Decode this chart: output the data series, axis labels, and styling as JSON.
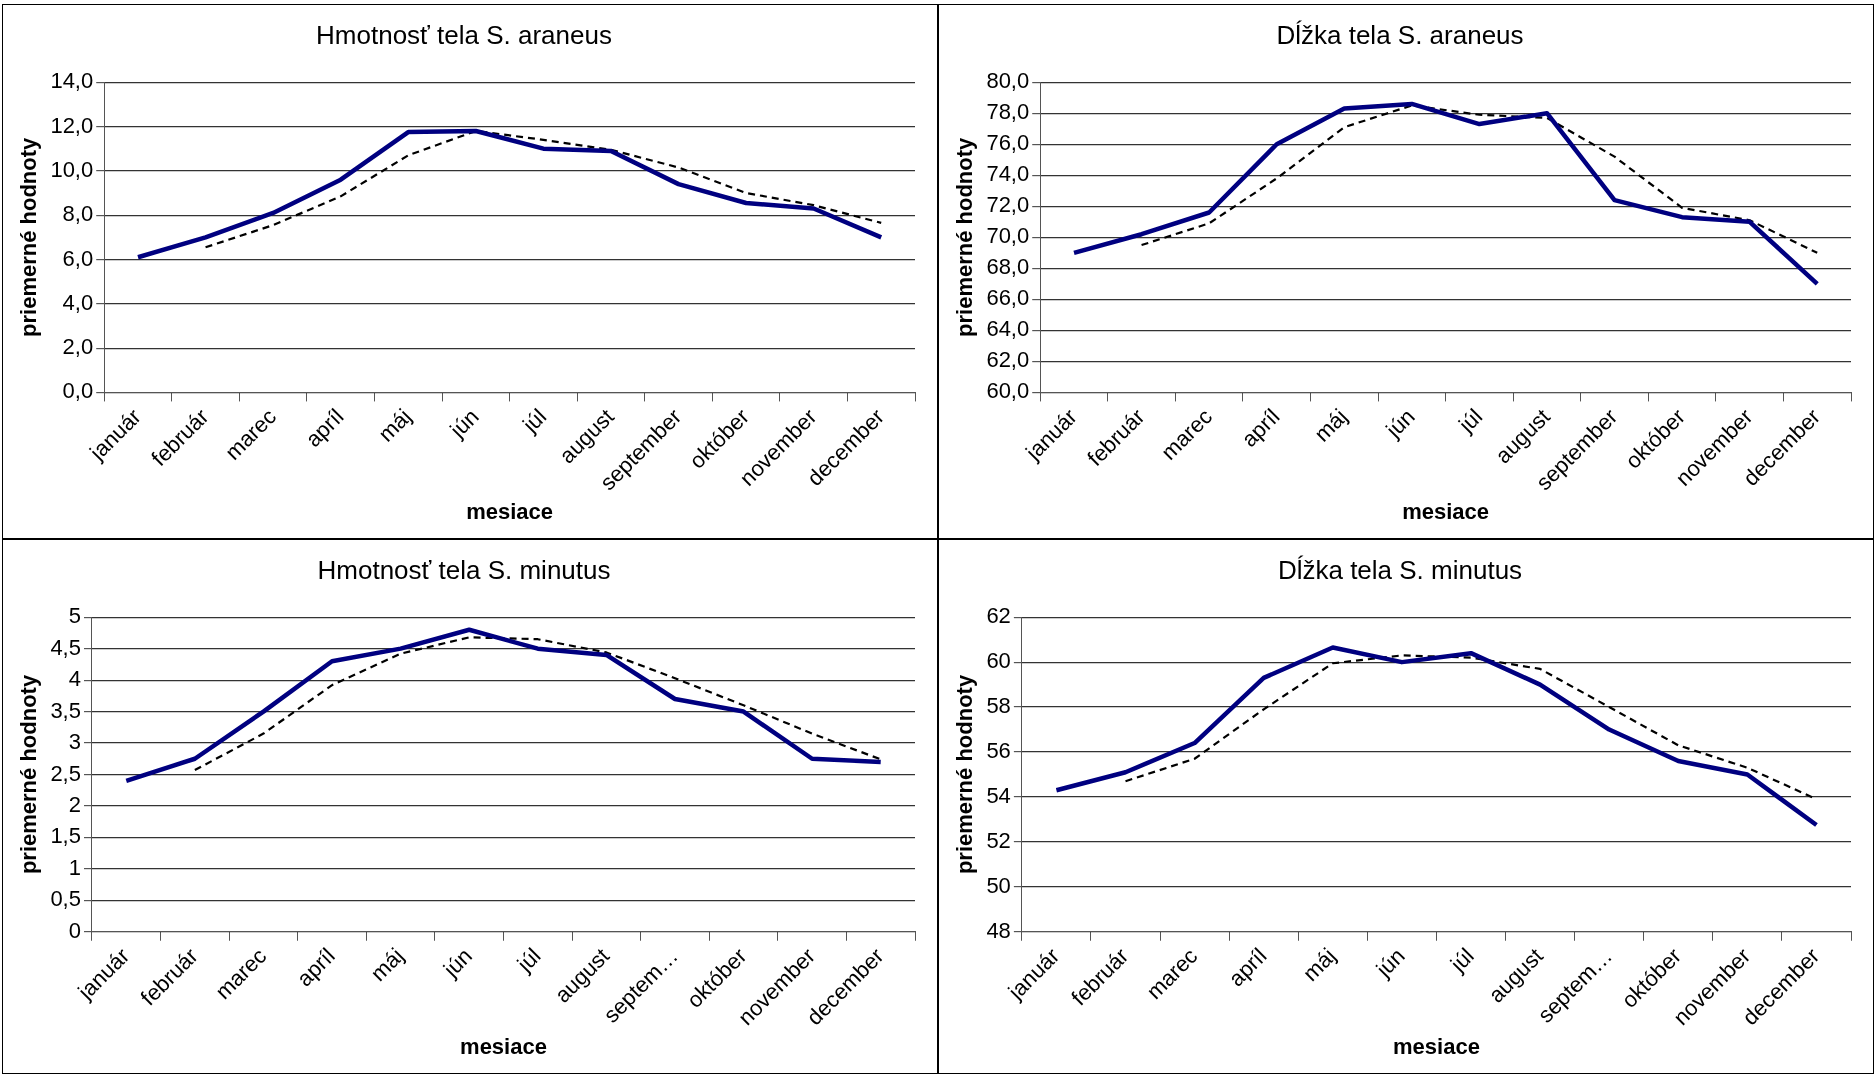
{
  "chart_data": [
    {
      "type": "line",
      "title": "Hmotnosť tela S. araneus",
      "xlabel": "mesiace",
      "ylabel": "priemerné hodnoty",
      "categories": [
        "január",
        "február",
        "marec",
        "apríl",
        "máj",
        "jún",
        "júl",
        "august",
        "september",
        "október",
        "november",
        "december"
      ],
      "series": [
        {
          "color": "#000080",
          "line_style": "solid",
          "values": [
            6.1,
            7.0,
            8.1,
            9.6,
            11.75,
            11.8,
            11.0,
            10.9,
            9.4,
            8.55,
            8.3,
            7.0
          ]
        },
        {
          "color": "#000000",
          "line_style": "dashed",
          "values": [
            null,
            6.55,
            7.55,
            8.85,
            10.7,
            11.8,
            11.4,
            10.95,
            10.15,
            9.0,
            8.45,
            7.65
          ]
        }
      ],
      "ylim": [
        0,
        14
      ],
      "yticks": [
        {
          "value": 0,
          "label": "0,0"
        },
        {
          "value": 2,
          "label": "2,0"
        },
        {
          "value": 4,
          "label": "4,0"
        },
        {
          "value": 6,
          "label": "6,0"
        },
        {
          "value": 8,
          "label": "8,0"
        },
        {
          "value": 10,
          "label": "10,0"
        },
        {
          "value": 12,
          "label": "12,0"
        },
        {
          "value": 14,
          "label": "14,0"
        }
      ],
      "grid": "y",
      "legend": false,
      "marker": "none"
    },
    {
      "type": "line",
      "title": "Dĺžka tela S. araneus",
      "xlabel": "mesiace",
      "ylabel": "priemerné hodnoty",
      "categories": [
        "január",
        "február",
        "marec",
        "apríl",
        "máj",
        "jún",
        "júl",
        "august",
        "september",
        "október",
        "november",
        "december"
      ],
      "series": [
        {
          "color": "#000080",
          "line_style": "solid",
          "values": [
            69.0,
            70.2,
            71.6,
            76.0,
            78.3,
            78.6,
            77.3,
            78.0,
            72.4,
            71.3,
            71.0,
            67.0
          ]
        },
        {
          "color": "#000000",
          "line_style": "dashed",
          "values": [
            null,
            69.5,
            70.9,
            73.8,
            77.1,
            78.5,
            77.9,
            77.7,
            75.2,
            71.9,
            71.1,
            69.0
          ]
        }
      ],
      "ylim": [
        60,
        80
      ],
      "yticks": [
        {
          "value": 60,
          "label": "60,0"
        },
        {
          "value": 62,
          "label": "62,0"
        },
        {
          "value": 64,
          "label": "64,0"
        },
        {
          "value": 66,
          "label": "66,0"
        },
        {
          "value": 68,
          "label": "68,0"
        },
        {
          "value": 70,
          "label": "70,0"
        },
        {
          "value": 72,
          "label": "72,0"
        },
        {
          "value": 74,
          "label": "74,0"
        },
        {
          "value": 76,
          "label": "76,0"
        },
        {
          "value": 78,
          "label": "78,0"
        },
        {
          "value": 80,
          "label": "80,0"
        }
      ],
      "grid": "y",
      "legend": false,
      "marker": "none"
    },
    {
      "type": "line",
      "title": "Hmotnosť tela S. minutus",
      "xlabel": "mesiace",
      "ylabel": "priemerné hodnoty",
      "categories": [
        "január",
        "február",
        "marec",
        "apríl",
        "máj",
        "jún",
        "júl",
        "august",
        "septem…",
        "október",
        "november",
        "december"
      ],
      "series": [
        {
          "color": "#000080",
          "line_style": "solid",
          "values": [
            2.4,
            2.75,
            3.5,
            4.3,
            4.5,
            4.8,
            4.5,
            4.4,
            3.7,
            3.5,
            2.75,
            2.7
          ]
        },
        {
          "color": "#000000",
          "line_style": "dashed",
          "values": [
            null,
            2.57,
            3.15,
            3.92,
            4.42,
            4.68,
            4.65,
            4.44,
            4.03,
            3.6,
            3.15,
            2.74
          ]
        }
      ],
      "ylim": [
        0,
        5
      ],
      "yticks": [
        0,
        {
          "value": 0.5,
          "label": "0,5"
        },
        1,
        {
          "value": 1.5,
          "label": "1,5"
        },
        2,
        {
          "value": 2.5,
          "label": "2,5"
        },
        3,
        {
          "value": 3.5,
          "label": "3,5"
        },
        4,
        {
          "value": 4.5,
          "label": "4,5"
        },
        5
      ],
      "grid": "y",
      "legend": false,
      "marker": "none"
    },
    {
      "type": "line",
      "title": "Dĺžka tela S. minutus",
      "xlabel": "mesiace",
      "ylabel": "priemerné hodnoty",
      "categories": [
        "január",
        "február",
        "marec",
        "apríl",
        "máj",
        "jún",
        "júl",
        "august",
        "septem…",
        "október",
        "november",
        "december"
      ],
      "series": [
        {
          "color": "#000080",
          "line_style": "solid",
          "values": [
            54.3,
            55.1,
            56.4,
            59.3,
            60.65,
            60.0,
            60.4,
            59.0,
            57.0,
            55.6,
            55.0,
            52.75
          ]
        },
        {
          "color": "#000000",
          "line_style": "dashed",
          "values": [
            null,
            54.7,
            55.7,
            57.9,
            59.95,
            60.3,
            60.2,
            59.7,
            58.0,
            56.3,
            55.3,
            53.9
          ]
        }
      ],
      "ylim": [
        48,
        62
      ],
      "yticks": [
        48,
        50,
        52,
        54,
        56,
        58,
        60,
        62
      ],
      "grid": "y",
      "legend": false,
      "marker": "none"
    }
  ]
}
